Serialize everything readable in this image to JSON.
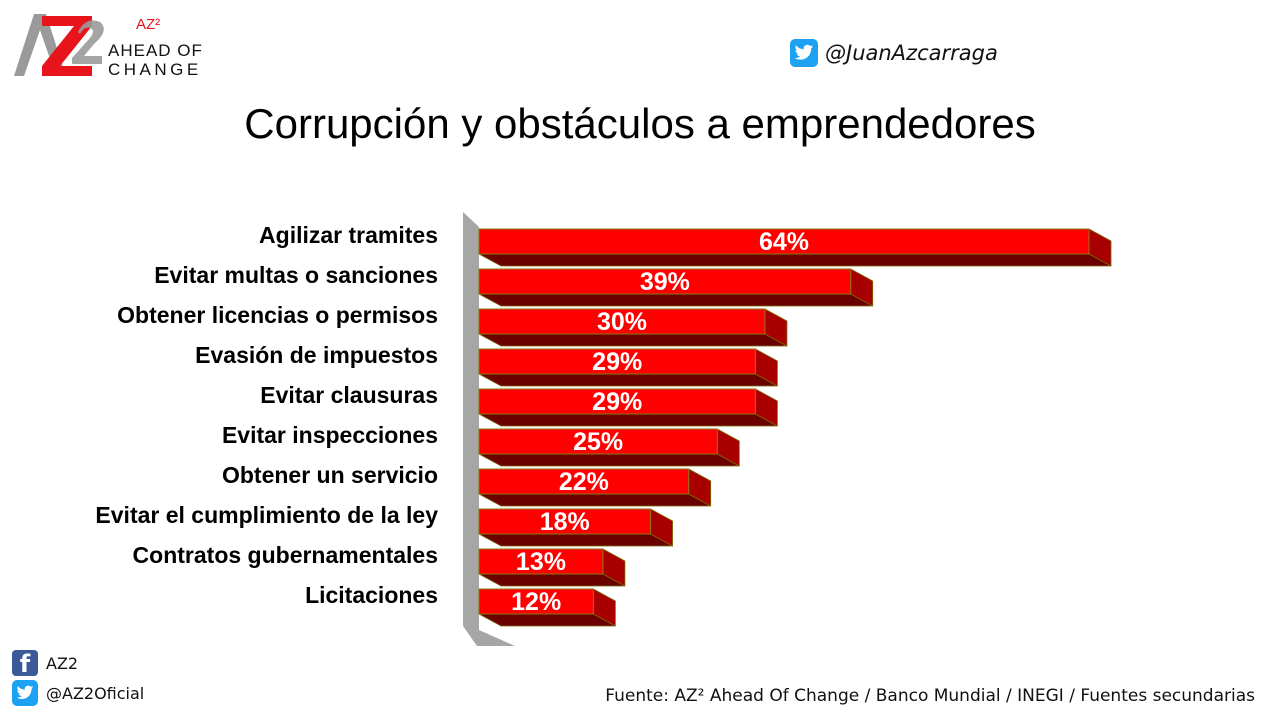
{
  "logo": {
    "superscript": "AZ²",
    "line1": "AHEAD OF",
    "line2": "CHANGE",
    "colors": {
      "red": "#e8141b",
      "gray": "#9a9a9a"
    }
  },
  "twitter_top": {
    "icon": "twitter-bird-icon",
    "handle": "@JuanAzcarraga",
    "color": "#1da1f2"
  },
  "title": "Corrupción y obstáculos a emprendedores",
  "chart_data": {
    "type": "bar",
    "orientation": "horizontal",
    "title": "Corrupción y obstáculos a emprendedores",
    "categories": [
      "Agilizar tramites",
      "Evitar multas o sanciones",
      "Obtener licencias o permisos",
      "Evasión de impuestos",
      "Evitar clausuras",
      "Evitar inspecciones",
      "Obtener un servicio",
      "Evitar el cumplimiento de la ley",
      "Contratos gubernamentales",
      "Licitaciones"
    ],
    "values": [
      64,
      39,
      30,
      29,
      29,
      25,
      22,
      18,
      13,
      12
    ],
    "value_labels": [
      "64%",
      "39%",
      "30%",
      "29%",
      "29%",
      "25%",
      "22%",
      "18%",
      "13%",
      "12%"
    ],
    "unit": "%",
    "bar_color": "#ff0000",
    "bar_side_color": "#a80000",
    "bar_bottom_color": "#6b0000",
    "wall_color": "#a6a6a6",
    "grid": false,
    "legend": false,
    "xlim": [
      0,
      64
    ]
  },
  "social": {
    "facebook": {
      "icon": "facebook-icon",
      "label": "AZ2",
      "color": "#3b5998"
    },
    "twitter": {
      "icon": "twitter-bird-icon",
      "label": "@AZ2Oficial",
      "color": "#1da1f2"
    }
  },
  "source": "Fuente: AZ² Ahead Of Change / Banco Mundial / INEGI / Fuentes secundarias"
}
